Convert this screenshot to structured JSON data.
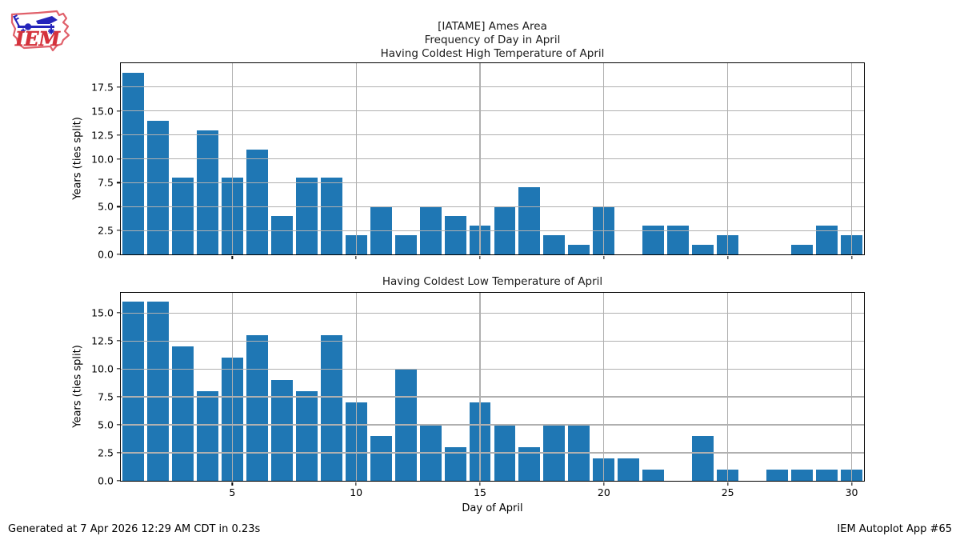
{
  "header": {
    "title_lines": [
      "[IATAME] Ames Area",
      "Frequency of Day in April",
      "Having Coldest High Temperature of April"
    ],
    "logo_text": "IEM"
  },
  "footer": {
    "generated": "Generated at 7 Apr 2026 12:29 AM CDT in 0.23s",
    "app": "IEM Autoplot App #65"
  },
  "colors": {
    "bar": "#1f77b4",
    "grid": "#b0b0b0",
    "spine": "#000000",
    "logo_red": "#d4323c",
    "logo_blue": "#2525bb"
  },
  "chart_data": [
    {
      "type": "bar",
      "title": "Having Coldest High Temperature of April",
      "xlabel": "",
      "ylabel": "Years (ties split)",
      "x": [
        1,
        2,
        3,
        4,
        5,
        6,
        7,
        8,
        9,
        10,
        11,
        12,
        13,
        14,
        15,
        16,
        17,
        18,
        19,
        20,
        21,
        22,
        23,
        24,
        25,
        26,
        27,
        28,
        29,
        30
      ],
      "values": [
        19,
        14,
        8,
        13,
        8,
        11,
        4,
        8,
        8,
        2,
        5,
        2,
        5,
        4,
        3,
        5,
        7,
        2,
        1,
        5,
        0,
        3,
        3,
        1,
        2,
        0,
        0,
        1,
        3,
        2
      ],
      "xlim": [
        0.5,
        30.5
      ],
      "ylim": [
        0,
        20
      ],
      "yticks": [
        0,
        2.5,
        5,
        7.5,
        10,
        12.5,
        15,
        17.5
      ],
      "xticks": [
        5,
        10,
        15,
        20,
        25,
        30
      ],
      "grid": true,
      "legend": "none",
      "show_x_tick_labels": false
    },
    {
      "type": "bar",
      "title": "Having Coldest Low Temperature of April",
      "xlabel": "Day of April",
      "ylabel": "Years (ties split)",
      "x": [
        1,
        2,
        3,
        4,
        5,
        6,
        7,
        8,
        9,
        10,
        11,
        12,
        13,
        14,
        15,
        16,
        17,
        18,
        19,
        20,
        21,
        22,
        23,
        24,
        25,
        26,
        27,
        28,
        29,
        30
      ],
      "values": [
        16,
        16,
        12,
        8,
        11,
        13,
        9,
        8,
        13,
        7,
        4,
        10,
        5,
        3,
        7,
        5,
        3,
        5,
        5,
        2,
        2,
        1,
        0,
        4,
        1,
        0,
        1,
        1,
        1,
        1
      ],
      "xlim": [
        0.5,
        30.5
      ],
      "ylim": [
        0,
        16.8
      ],
      "yticks": [
        0,
        2.5,
        5,
        7.5,
        10,
        12.5,
        15
      ],
      "xticks": [
        5,
        10,
        15,
        20,
        25,
        30
      ],
      "grid": true,
      "legend": "none",
      "show_x_tick_labels": true
    }
  ]
}
